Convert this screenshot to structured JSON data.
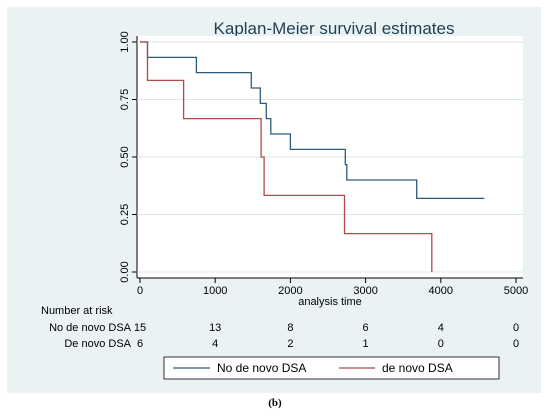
{
  "chart_data": {
    "type": "line",
    "title": "Kaplan-Meier survival estimates",
    "xlabel": "analysis time",
    "ylabel": "",
    "xlim": [
      0,
      5000
    ],
    "ylim": [
      0,
      1
    ],
    "x_ticks": [
      "0",
      "1000",
      "2000",
      "3000",
      "4000",
      "5000"
    ],
    "y_ticks": [
      "0.00",
      "0.25",
      "0.50",
      "0.75",
      "1.00"
    ],
    "grid": "horizontal",
    "legend_position": "bottom",
    "series": [
      {
        "name": "No de novo DSA",
        "color": "#2e5a78",
        "points": [
          [
            0,
            1.0
          ],
          [
            100,
            1.0
          ],
          [
            100,
            0.933
          ],
          [
            750,
            0.933
          ],
          [
            750,
            0.867
          ],
          [
            1480,
            0.867
          ],
          [
            1480,
            0.8
          ],
          [
            1600,
            0.8
          ],
          [
            1600,
            0.733
          ],
          [
            1680,
            0.733
          ],
          [
            1680,
            0.667
          ],
          [
            1740,
            0.667
          ],
          [
            1740,
            0.6
          ],
          [
            2000,
            0.6
          ],
          [
            2000,
            0.533
          ],
          [
            2730,
            0.533
          ],
          [
            2730,
            0.467
          ],
          [
            2750,
            0.467
          ],
          [
            2750,
            0.4
          ],
          [
            3680,
            0.4
          ],
          [
            3680,
            0.32
          ],
          [
            4580,
            0.32
          ]
        ]
      },
      {
        "name": "de novo DSA",
        "color": "#b24a4a",
        "points": [
          [
            0,
            1.0
          ],
          [
            100,
            1.0
          ],
          [
            100,
            0.833
          ],
          [
            580,
            0.833
          ],
          [
            580,
            0.667
          ],
          [
            1610,
            0.667
          ],
          [
            1610,
            0.5
          ],
          [
            1650,
            0.5
          ],
          [
            1650,
            0.333
          ],
          [
            2720,
            0.333
          ],
          [
            2720,
            0.167
          ],
          [
            3880,
            0.167
          ],
          [
            3880,
            0.0
          ]
        ]
      }
    ],
    "risk_table": {
      "header": "Number at risk",
      "times": [
        0,
        1000,
        2000,
        3000,
        4000,
        5000
      ],
      "rows": [
        {
          "label": "No de novo DSA",
          "counts": [
            "15",
            "13",
            "8",
            "6",
            "4",
            "0"
          ]
        },
        {
          "label": "De novo DSA",
          "counts": [
            "6",
            "4",
            "2",
            "1",
            "0",
            "0"
          ]
        }
      ]
    },
    "caption": "(b)"
  }
}
